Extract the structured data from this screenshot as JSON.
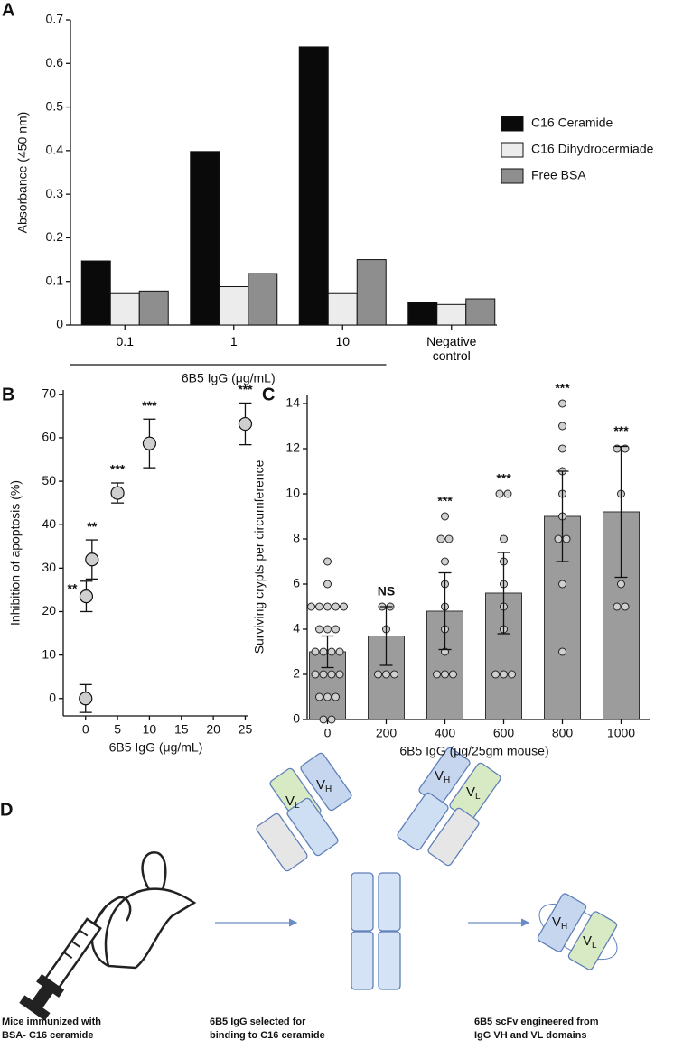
{
  "chart_data": [
    {
      "type": "bar",
      "panel": "A",
      "ylabel": "Absorbance (450 nm)",
      "xlabel": "6B5 IgG (μg/mL)",
      "categories": [
        "0.1",
        "1",
        "10",
        "Negative control"
      ],
      "series": [
        {
          "name": "C16 Ceramide",
          "color": "#0a0a0a",
          "values": [
            0.147,
            0.398,
            0.638,
            0.052
          ]
        },
        {
          "name": "C16 Dihydrocermiade",
          "color": "#ececec",
          "values": [
            0.072,
            0.088,
            0.072,
            0.047
          ]
        },
        {
          "name": "Free BSA",
          "color": "#8e8e8e",
          "values": [
            0.078,
            0.118,
            0.15,
            0.06
          ]
        }
      ],
      "ylim": [
        0,
        0.7
      ],
      "yticks": [
        0,
        0.1,
        0.2,
        0.3,
        0.4,
        0.5,
        0.6,
        0.7
      ],
      "legend": "right"
    },
    {
      "type": "scatter",
      "panel": "B",
      "ylabel": "Inhibition of apoptosis (%)",
      "xlabel": "6B5 IgG (μg/mL)",
      "x": [
        0,
        0.1,
        1,
        5,
        10,
        25
      ],
      "y": [
        0,
        23.5,
        32,
        47.3,
        58.7,
        63.2
      ],
      "errors": [
        3.2,
        3.5,
        4.5,
        2.3,
        5.6,
        4.8
      ],
      "significance": [
        null,
        "**",
        "**",
        "***",
        "***",
        "***"
      ],
      "color": "#cfcfcf",
      "xlim": [
        -3.5,
        25.5
      ],
      "xticks": [
        0,
        5,
        10,
        15,
        20,
        25
      ],
      "ylim": [
        -4,
        71
      ],
      "yticks": [
        0,
        10,
        20,
        30,
        40,
        50,
        60,
        70
      ]
    },
    {
      "type": "dotbar",
      "panel": "C",
      "ylabel": "Surviving crypts per circumference",
      "xlabel": "6B5 IgG (μg/25gm mouse)",
      "categories": [
        "0",
        "200",
        "400",
        "600",
        "800",
        "1000"
      ],
      "values": [
        3.0,
        3.7,
        4.8,
        5.6,
        9.0,
        9.2
      ],
      "errors": [
        0.7,
        1.3,
        1.7,
        1.8,
        2.0,
        2.9
      ],
      "significance": [
        null,
        "NS",
        "***",
        "***",
        "***",
        "***"
      ],
      "points": [
        [
          7,
          6,
          5,
          5,
          5,
          5,
          5,
          4,
          4,
          4,
          3,
          3,
          3,
          3,
          2,
          2,
          2,
          2,
          1,
          1,
          1,
          0,
          0
        ],
        [
          5,
          5,
          4,
          2,
          2,
          2
        ],
        [
          9,
          8,
          8,
          7,
          6,
          5,
          4,
          3,
          2,
          2,
          2
        ],
        [
          10,
          10,
          8,
          7,
          6,
          5,
          4,
          2,
          2,
          2
        ],
        [
          14,
          13,
          12,
          11,
          10,
          9,
          8,
          8,
          6,
          3
        ],
        [
          12,
          12,
          10,
          6,
          5,
          5
        ]
      ],
      "color": "#9c9c9c",
      "ylim": [
        0,
        14.4
      ],
      "yticks": [
        0,
        2,
        4,
        6,
        8,
        10,
        12,
        14
      ]
    }
  ],
  "diagram": {
    "panel": "D",
    "domains": [
      {
        "main": "V",
        "sub": "L"
      },
      {
        "main": "V",
        "sub": "H"
      },
      {
        "main": "V",
        "sub": "H"
      },
      {
        "main": "V",
        "sub": "L"
      },
      {
        "main": "V",
        "sub": "H"
      },
      {
        "main": "V",
        "sub": "L"
      }
    ],
    "captions": [
      [
        "Mice immunized with",
        "BSA- C16 ceramide"
      ],
      [
        "6B5 IgG selected for",
        "binding to C16 ceramide"
      ],
      [
        "6B5 scFv engineered from",
        "IgG VH and VL domains"
      ]
    ]
  }
}
